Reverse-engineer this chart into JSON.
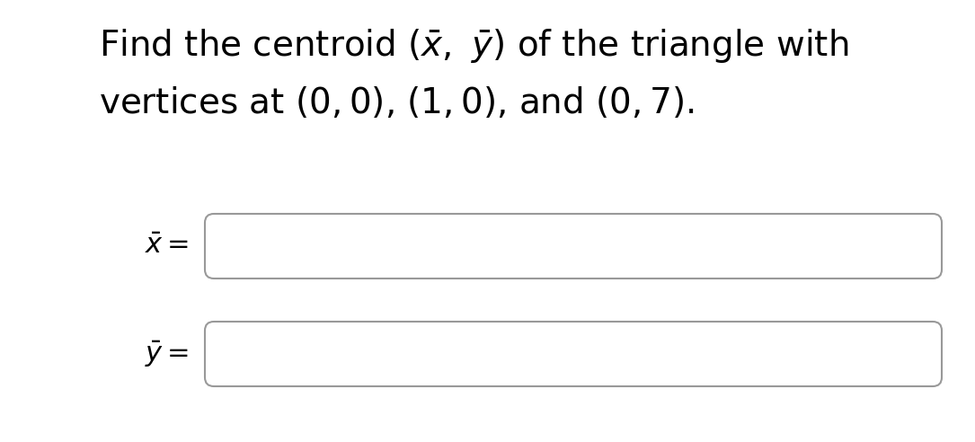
{
  "background_color": "#ffffff",
  "text_color": "#000000",
  "title_fontsize": 28,
  "label_fontsize": 22,
  "box_facecolor": "#ffffff",
  "box_edgecolor": "#999999",
  "fig_width": 10.85,
  "fig_height": 4.92,
  "dpi": 100
}
